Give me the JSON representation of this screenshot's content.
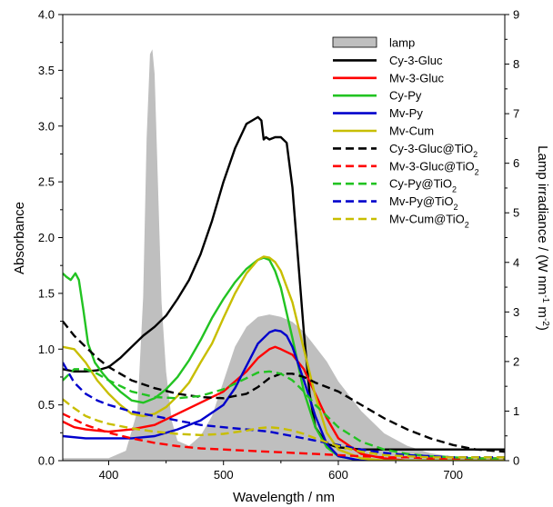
{
  "chart_data": {
    "type": "line",
    "xlabel": "Wavelength / nm",
    "ylabel": "Absorbance",
    "y2label": "Lamp irradiance / (W nm⁻¹ m⁻²)",
    "xlim": [
      360,
      745
    ],
    "ylim": [
      0,
      4.0
    ],
    "y2lim": [
      0,
      9
    ],
    "xticks": [
      400,
      500,
      600,
      700
    ],
    "yticks": [
      "0.0",
      "0.5",
      "1.0",
      "1.5",
      "2.0",
      "2.5",
      "3.0",
      "3.5",
      "4.0"
    ],
    "y2ticks": [
      "0",
      "1",
      "2",
      "3",
      "4",
      "5",
      "6",
      "7",
      "8",
      "9"
    ],
    "legend_position": "top-right",
    "lamp": {
      "name": "lamp",
      "color": "#bfbfbf",
      "axis": "right",
      "x": [
        360,
        400,
        415,
        425,
        430,
        433,
        436,
        438,
        440,
        443,
        446,
        450,
        455,
        460,
        470,
        480,
        490,
        500,
        510,
        520,
        530,
        540,
        550,
        560,
        570,
        580,
        590,
        600,
        620,
        640,
        660,
        680,
        700,
        720,
        745
      ],
      "values": [
        0.05,
        0.05,
        0.2,
        1.0,
        3.3,
        6.5,
        8.2,
        8.3,
        7.8,
        5.5,
        3.2,
        1.8,
        0.8,
        0.4,
        0.3,
        0.5,
        0.9,
        1.6,
        2.3,
        2.7,
        2.9,
        2.95,
        2.9,
        2.8,
        2.6,
        2.3,
        2.0,
        1.6,
        1.0,
        0.55,
        0.3,
        0.15,
        0.08,
        0.05,
        0.04
      ]
    },
    "series": [
      {
        "name": "Cy-3-Gluc",
        "color": "#000000",
        "dash": false,
        "x": [
          360,
          370,
          380,
          390,
          400,
          410,
          420,
          430,
          440,
          450,
          460,
          470,
          480,
          490,
          500,
          510,
          520,
          525,
          530,
          533,
          535,
          537,
          540,
          545,
          550,
          555,
          560,
          565,
          570,
          575,
          580,
          590,
          600,
          620,
          650,
          700,
          745
        ],
        "values": [
          0.82,
          0.8,
          0.8,
          0.81,
          0.84,
          0.92,
          1.02,
          1.12,
          1.2,
          1.3,
          1.45,
          1.62,
          1.85,
          2.15,
          2.5,
          2.8,
          3.02,
          3.05,
          3.08,
          3.05,
          2.88,
          2.9,
          2.88,
          2.9,
          2.9,
          2.85,
          2.45,
          1.8,
          1.15,
          0.6,
          0.3,
          0.15,
          0.12,
          0.1,
          0.1,
          0.1,
          0.1
        ]
      },
      {
        "name": "Mv-3-Gluc",
        "color": "#ff0000",
        "dash": false,
        "x": [
          360,
          370,
          380,
          390,
          400,
          420,
          440,
          460,
          480,
          500,
          520,
          530,
          540,
          545,
          550,
          560,
          570,
          580,
          590,
          600,
          620,
          640,
          660,
          745
        ],
        "values": [
          0.35,
          0.3,
          0.28,
          0.27,
          0.26,
          0.28,
          0.32,
          0.42,
          0.52,
          0.62,
          0.8,
          0.92,
          1.0,
          1.02,
          1.0,
          0.95,
          0.82,
          0.6,
          0.38,
          0.2,
          0.06,
          0.02,
          0.0,
          0.0
        ]
      },
      {
        "name": "Cy-Py",
        "color": "#22c322",
        "dash": false,
        "x": [
          360,
          363,
          367,
          371,
          374,
          378,
          382,
          388,
          395,
          400,
          410,
          420,
          430,
          440,
          450,
          460,
          470,
          480,
          490,
          500,
          510,
          520,
          530,
          535,
          540,
          545,
          550,
          560,
          570,
          580,
          590,
          600,
          620,
          640,
          745
        ],
        "values": [
          1.68,
          1.65,
          1.62,
          1.68,
          1.62,
          1.35,
          1.05,
          0.88,
          0.78,
          0.72,
          0.62,
          0.54,
          0.52,
          0.56,
          0.64,
          0.75,
          0.9,
          1.08,
          1.28,
          1.45,
          1.6,
          1.72,
          1.8,
          1.82,
          1.8,
          1.7,
          1.55,
          1.1,
          0.62,
          0.3,
          0.12,
          0.04,
          0.0,
          0.0,
          0.0
        ]
      },
      {
        "name": "Mv-Py",
        "color": "#0000cc",
        "dash": false,
        "x": [
          360,
          380,
          400,
          420,
          440,
          460,
          480,
          500,
          510,
          520,
          530,
          540,
          545,
          550,
          555,
          560,
          570,
          580,
          590,
          600,
          620,
          640,
          745
        ],
        "values": [
          0.22,
          0.2,
          0.2,
          0.2,
          0.22,
          0.28,
          0.36,
          0.5,
          0.65,
          0.85,
          1.05,
          1.15,
          1.17,
          1.16,
          1.12,
          1.02,
          0.72,
          0.4,
          0.15,
          0.04,
          0.0,
          0.0,
          0.0
        ]
      },
      {
        "name": "Mv-Cum",
        "color": "#c8be00",
        "dash": false,
        "x": [
          360,
          370,
          380,
          390,
          400,
          410,
          420,
          430,
          440,
          450,
          460,
          470,
          480,
          490,
          500,
          510,
          520,
          530,
          535,
          540,
          545,
          550,
          560,
          570,
          580,
          590,
          600,
          620,
          640,
          745
        ],
        "values": [
          1.02,
          1.0,
          0.88,
          0.72,
          0.6,
          0.5,
          0.42,
          0.4,
          0.42,
          0.48,
          0.58,
          0.7,
          0.88,
          1.05,
          1.28,
          1.5,
          1.68,
          1.8,
          1.83,
          1.82,
          1.78,
          1.7,
          1.42,
          1.0,
          0.58,
          0.25,
          0.1,
          0.02,
          0.0,
          0.0
        ]
      },
      {
        "name": "Cy-3-Gluc@TiO2",
        "color": "#000000",
        "dash": true,
        "x": [
          360,
          370,
          380,
          390,
          400,
          420,
          440,
          460,
          480,
          500,
          520,
          530,
          540,
          550,
          560,
          570,
          580,
          600,
          620,
          640,
          660,
          680,
          700,
          720,
          745
        ],
        "values": [
          1.25,
          1.12,
          1.02,
          0.92,
          0.84,
          0.72,
          0.65,
          0.6,
          0.57,
          0.56,
          0.6,
          0.66,
          0.74,
          0.78,
          0.78,
          0.75,
          0.7,
          0.62,
          0.5,
          0.38,
          0.28,
          0.2,
          0.14,
          0.1,
          0.08
        ]
      },
      {
        "name": "Mv-3-Gluc@TiO2",
        "color": "#ff0000",
        "dash": true,
        "x": [
          360,
          380,
          400,
          420,
          440,
          460,
          480,
          500,
          520,
          540,
          560,
          580,
          600,
          620,
          640,
          660,
          680,
          700,
          720,
          745
        ],
        "values": [
          0.42,
          0.32,
          0.25,
          0.2,
          0.16,
          0.13,
          0.11,
          0.1,
          0.09,
          0.08,
          0.07,
          0.06,
          0.05,
          0.04,
          0.03,
          0.03,
          0.02,
          0.02,
          0.02,
          0.02
        ]
      },
      {
        "name": "Cy-Py@TiO2",
        "color": "#22c322",
        "dash": true,
        "x": [
          360,
          370,
          380,
          390,
          400,
          420,
          440,
          460,
          480,
          500,
          520,
          530,
          540,
          550,
          560,
          570,
          580,
          600,
          620,
          640,
          660,
          680,
          700,
          720,
          745
        ],
        "values": [
          0.72,
          0.82,
          0.82,
          0.78,
          0.72,
          0.62,
          0.57,
          0.56,
          0.58,
          0.64,
          0.74,
          0.79,
          0.8,
          0.78,
          0.72,
          0.62,
          0.5,
          0.3,
          0.17,
          0.1,
          0.06,
          0.04,
          0.03,
          0.02,
          0.02
        ]
      },
      {
        "name": "Mv-Py@TiO2",
        "color": "#0000cc",
        "dash": true,
        "x": [
          360,
          370,
          380,
          390,
          400,
          420,
          440,
          460,
          480,
          500,
          520,
          540,
          560,
          580,
          600,
          620,
          640,
          660,
          680,
          700,
          720,
          745
        ],
        "values": [
          0.88,
          0.7,
          0.6,
          0.54,
          0.5,
          0.44,
          0.4,
          0.36,
          0.32,
          0.3,
          0.28,
          0.26,
          0.22,
          0.18,
          0.14,
          0.1,
          0.07,
          0.05,
          0.04,
          0.03,
          0.03,
          0.03
        ]
      },
      {
        "name": "Mv-Cum@TiO2",
        "color": "#c8be00",
        "dash": true,
        "x": [
          360,
          370,
          380,
          390,
          400,
          420,
          440,
          460,
          480,
          500,
          520,
          530,
          540,
          550,
          560,
          570,
          580,
          600,
          620,
          640,
          660,
          680,
          700,
          720,
          745
        ],
        "values": [
          0.55,
          0.47,
          0.4,
          0.36,
          0.33,
          0.29,
          0.26,
          0.24,
          0.23,
          0.24,
          0.27,
          0.29,
          0.3,
          0.29,
          0.27,
          0.24,
          0.2,
          0.13,
          0.08,
          0.05,
          0.04,
          0.03,
          0.03,
          0.03,
          0.03
        ]
      }
    ]
  }
}
